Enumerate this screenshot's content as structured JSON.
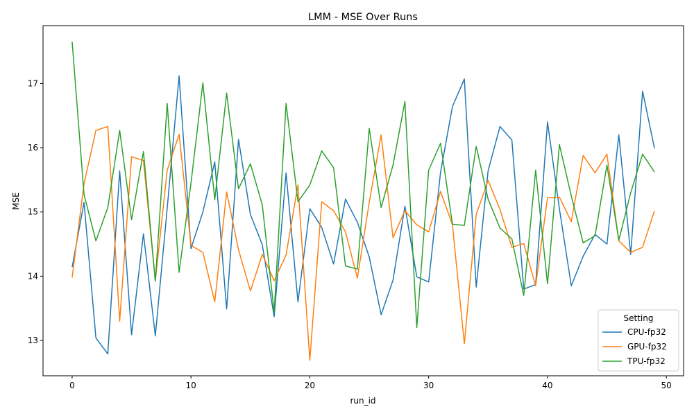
{
  "chart_data": {
    "type": "line",
    "title": "LMM - MSE Over Runs",
    "xlabel": "run_id",
    "ylabel": "MSE",
    "xlim": [
      -2.45,
      51.45
    ],
    "ylim": [
      12.45,
      17.9
    ],
    "xticks": [
      0,
      10,
      20,
      30,
      40,
      50
    ],
    "yticks": [
      13,
      14,
      15,
      16,
      17
    ],
    "grid": false,
    "legend": {
      "title": "Setting",
      "placement": "lower-right"
    },
    "x": [
      0,
      1,
      2,
      3,
      4,
      5,
      6,
      7,
      8,
      9,
      10,
      11,
      12,
      13,
      14,
      15,
      16,
      17,
      18,
      19,
      20,
      21,
      22,
      23,
      24,
      25,
      26,
      27,
      28,
      29,
      30,
      31,
      32,
      33,
      34,
      35,
      36,
      37,
      38,
      39,
      40,
      41,
      42,
      43,
      44,
      45,
      46,
      47,
      48,
      49
    ],
    "series": [
      {
        "name": "CPU-fp32",
        "color": "#1f77b4",
        "values": [
          14.14,
          15.15,
          13.04,
          12.79,
          15.64,
          13.09,
          14.66,
          13.07,
          15.06,
          17.12,
          14.43,
          15.0,
          15.78,
          13.49,
          16.13,
          14.96,
          14.49,
          13.37,
          15.61,
          13.6,
          15.05,
          14.76,
          14.19,
          15.2,
          14.84,
          14.3,
          13.4,
          13.94,
          15.09,
          13.99,
          13.91,
          15.62,
          16.64,
          17.07,
          13.83,
          15.64,
          16.33,
          16.12,
          13.8,
          13.87,
          16.4,
          15.05,
          13.85,
          14.31,
          14.65,
          14.5,
          16.2,
          14.34,
          16.88,
          15.99
        ]
      },
      {
        "name": "GPU-fp32",
        "color": "#ff7f0e",
        "values": [
          13.98,
          15.44,
          16.27,
          16.33,
          13.3,
          15.86,
          15.8,
          13.93,
          15.65,
          16.21,
          14.48,
          14.37,
          13.6,
          15.31,
          14.41,
          13.77,
          14.34,
          13.93,
          14.33,
          15.42,
          12.69,
          15.16,
          15.02,
          14.69,
          13.97,
          15.15,
          16.2,
          14.6,
          15.02,
          14.8,
          14.69,
          15.32,
          14.8,
          12.95,
          14.96,
          15.49,
          15.04,
          14.45,
          14.51,
          13.85,
          15.22,
          15.23,
          14.85,
          15.88,
          15.61,
          15.9,
          14.55,
          14.37,
          14.45,
          15.02
        ]
      },
      {
        "name": "TPU-fp32",
        "color": "#2ca02c",
        "values": [
          17.65,
          15.27,
          14.55,
          15.07,
          16.27,
          14.88,
          15.94,
          13.92,
          16.69,
          14.06,
          15.45,
          17.01,
          15.19,
          16.85,
          15.36,
          15.75,
          15.11,
          13.44,
          16.69,
          15.16,
          15.42,
          15.95,
          15.69,
          14.16,
          14.11,
          16.3,
          15.07,
          15.73,
          16.72,
          13.2,
          15.65,
          16.07,
          14.81,
          14.79,
          16.02,
          15.2,
          14.75,
          14.58,
          13.7,
          15.65,
          13.88,
          16.05,
          15.25,
          14.52,
          14.63,
          15.73,
          14.56,
          15.3,
          15.9,
          15.62
        ]
      }
    ]
  }
}
